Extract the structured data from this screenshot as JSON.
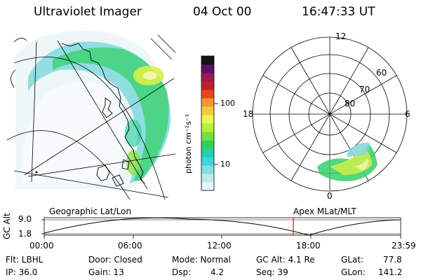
{
  "header": {
    "title": "Ultraviolet Imager",
    "date": "04 Oct 00",
    "time": "16:47:33 UT"
  },
  "colorbar": {
    "unit_label": "photon cm⁻²s⁻¹",
    "ticks": [
      "100",
      "10"
    ],
    "colors": [
      "#e8f4f4",
      "#bfe8ea",
      "#86dce0",
      "#38d8d8",
      "#26d0a6",
      "#2ed25a",
      "#72e23a",
      "#b8f03c",
      "#ecf648",
      "#f8c83c",
      "#f59a2a",
      "#e6461e",
      "#c01e26",
      "#9e1854",
      "#5e1064",
      "#141414"
    ]
  },
  "polar": {
    "mlt_labels": {
      "top": "12",
      "left": "18",
      "right": "6",
      "bottom": "0"
    },
    "lat_labels": [
      "60",
      "70",
      "80"
    ]
  },
  "captions": {
    "left_map": "Geographic Lat/Lon",
    "right_map": "Apex MLat/MLT"
  },
  "orbit_plot": {
    "ylabel": "GC Alt",
    "yticks": [
      "9.0",
      "1.8"
    ],
    "xticks": [
      "00:00",
      "06:00",
      "12:00",
      "18:00",
      "23:59"
    ],
    "marker_color": "#cc2222"
  },
  "info": {
    "filter": "Flt: LBHL",
    "ip": "IP: 36.0",
    "door": "Door: Closed",
    "gain": "Gain: 13",
    "mode": "Mode: Normal",
    "dsp_label": "Dsp:",
    "dsp_value": "4.2",
    "gc_alt": "GC Alt: 4.1 Re",
    "seq": "Seq: 39",
    "glat_label": "GLat:",
    "glat_value": "77.8",
    "glon_label": "GLon:",
    "glon_value": "141.2"
  }
}
